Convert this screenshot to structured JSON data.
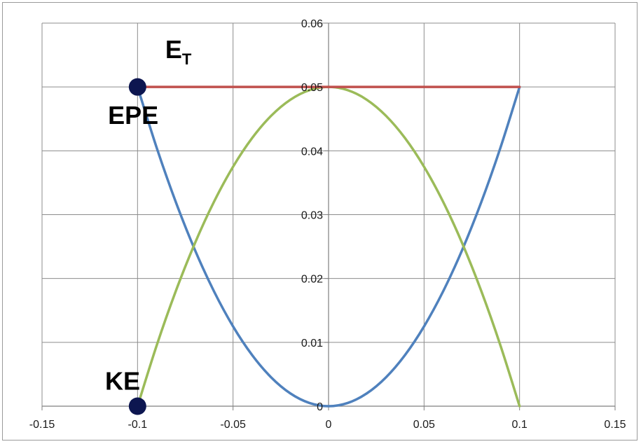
{
  "chart_data": {
    "type": "line",
    "title": "",
    "xlabel": "",
    "ylabel": "",
    "xlim": [
      -0.15,
      0.15
    ],
    "ylim": [
      0,
      0.06
    ],
    "x_ticks": [
      "-0.15",
      "-0.1",
      "-0.05",
      "0",
      "0.05",
      "0.1",
      "0.15"
    ],
    "y_ticks": [
      "0",
      "0.01",
      "0.02",
      "0.03",
      "0.04",
      "0.05",
      "0.06"
    ],
    "grid": true,
    "legend": "none",
    "series": [
      {
        "color": "#4f81bd",
        "x": [
          -0.1,
          -0.09,
          -0.08,
          -0.07,
          -0.06,
          -0.05,
          -0.04,
          -0.03,
          -0.02,
          -0.01,
          0,
          0.01,
          0.02,
          0.03,
          0.04,
          0.05,
          0.06,
          0.07,
          0.08,
          0.09,
          0.1
        ],
        "y": [
          0.05,
          0.0405,
          0.032,
          0.0245,
          0.018,
          0.0125,
          0.008,
          0.0045,
          0.002,
          0.0005,
          0,
          0.0005,
          0.002,
          0.0045,
          0.008,
          0.0125,
          0.018,
          0.0245,
          0.032,
          0.0405,
          0.05
        ]
      },
      {
        "color": "#9bbb59",
        "x": [
          -0.1,
          -0.09,
          -0.08,
          -0.07,
          -0.06,
          -0.05,
          -0.04,
          -0.03,
          -0.02,
          -0.01,
          0,
          0.01,
          0.02,
          0.03,
          0.04,
          0.05,
          0.06,
          0.07,
          0.08,
          0.09,
          0.1
        ],
        "y": [
          0,
          0.0095,
          0.018,
          0.0255,
          0.032,
          0.0375,
          0.042,
          0.0455,
          0.048,
          0.0495,
          0.05,
          0.0495,
          0.048,
          0.0455,
          0.042,
          0.0375,
          0.032,
          0.0255,
          0.018,
          0.0095,
          0
        ]
      },
      {
        "color": "#c0504d",
        "x": [
          -0.1,
          0.1
        ],
        "y": [
          0.05,
          0.05
        ]
      }
    ],
    "markers": [
      {
        "x": -0.1,
        "y": 0.05,
        "color": "#0d1650"
      },
      {
        "x": -0.1,
        "y": 0,
        "color": "#0d1650"
      }
    ],
    "annotations": [
      {
        "text": "E",
        "subscript": "T",
        "x": -0.0855,
        "y": 0.0545
      },
      {
        "text": "EPE",
        "x": -0.1155,
        "y": 0.0442
      },
      {
        "text": "KE",
        "x": -0.117,
        "y": 0.0026
      }
    ]
  }
}
